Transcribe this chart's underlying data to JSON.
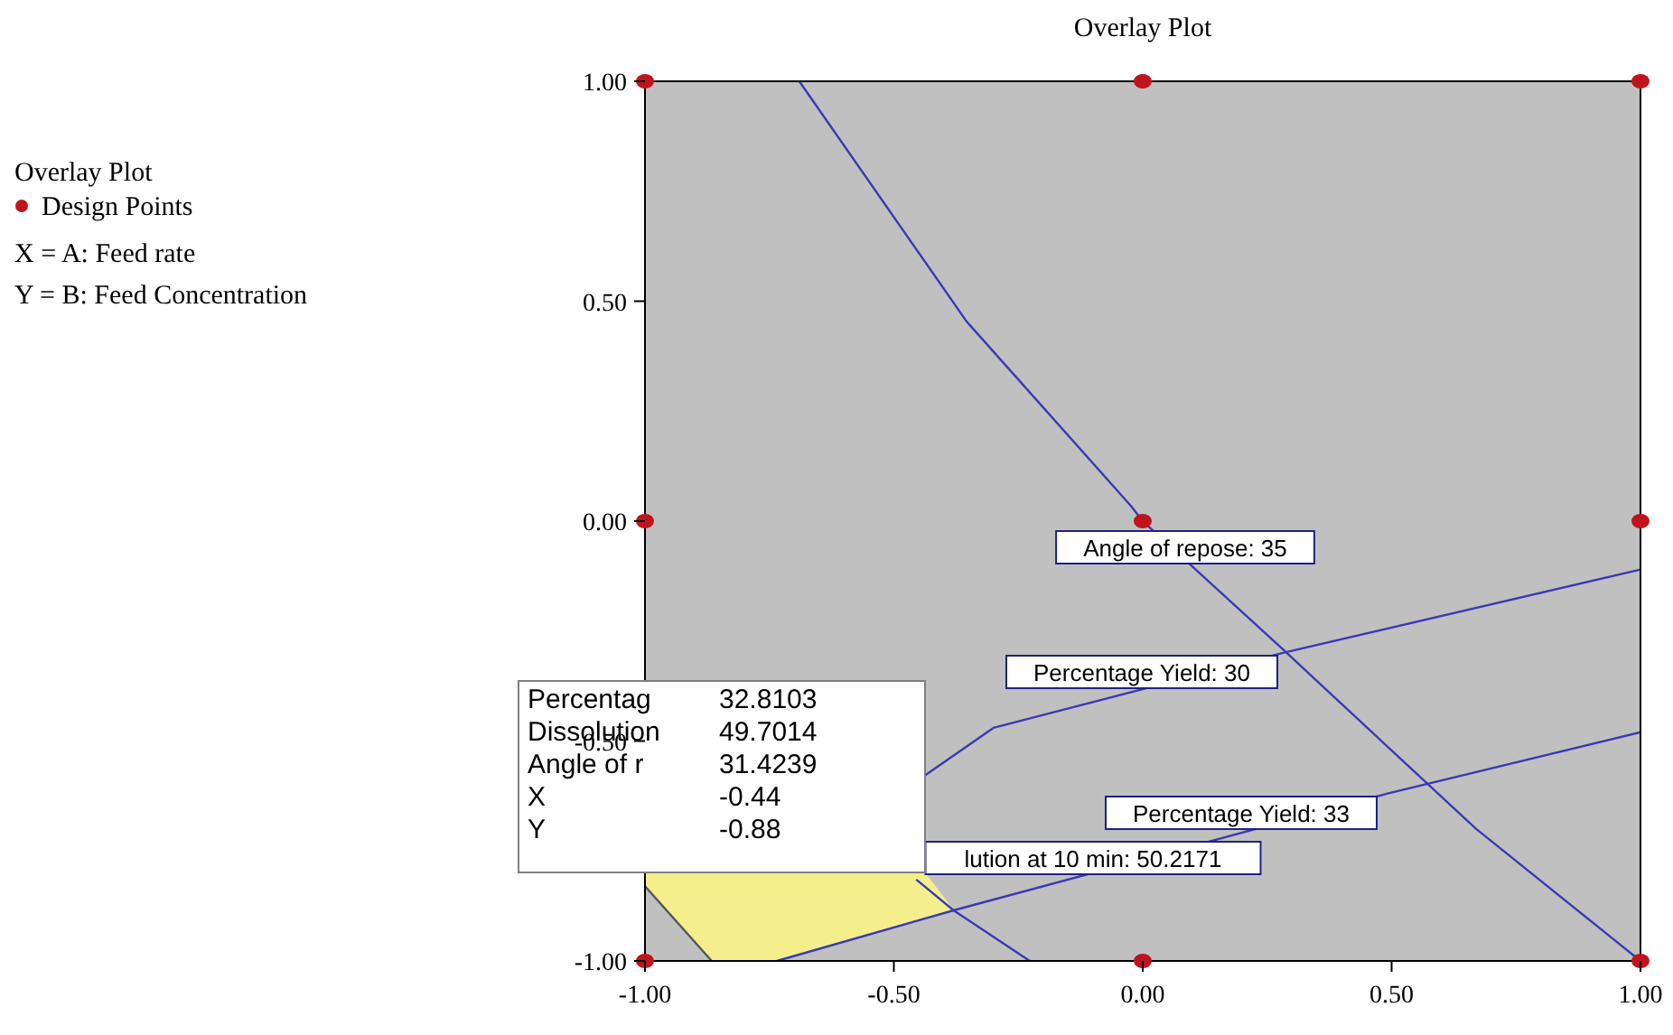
{
  "chart_data": {
    "type": "line",
    "title": "Overlay Plot",
    "legend_title": "Overlay Plot",
    "legend": "left",
    "grid": false,
    "xlim": [
      -1,
      1
    ],
    "ylim": [
      -1,
      1
    ],
    "xticks": [
      {
        "value": -1,
        "label": "-1.00"
      },
      {
        "value": -0.5,
        "label": "-0.50"
      },
      {
        "value": 0,
        "label": "0.00"
      },
      {
        "value": 0.5,
        "label": "0.50"
      },
      {
        "value": 1,
        "label": "1.00"
      }
    ],
    "yticks": [
      {
        "value": -1,
        "label": "-1.00"
      },
      {
        "value": -0.5,
        "label": "-0.50"
      },
      {
        "value": 0,
        "label": "0.00"
      },
      {
        "value": 0.5,
        "label": "0.50"
      },
      {
        "value": 1,
        "label": "1.00"
      }
    ],
    "series": [
      {
        "color": "#3a3ab4",
        "marker": "none",
        "x": [
          -0.69,
          -0.354,
          -0.024,
          0,
          0.28,
          0.67,
          1
        ],
        "values": [
          1,
          0.454,
          0.035,
          0,
          -0.29,
          -0.7,
          -1
        ]
      },
      {
        "color": "#3a3ab4",
        "marker": "none",
        "x": [
          -0.44,
          -0.3,
          0.28,
          1
        ],
        "values": [
          -0.58,
          -0.47,
          -0.3,
          -0.11
        ]
      },
      {
        "color": "#3a3ab4",
        "marker": "none",
        "x": [
          -0.735,
          -0.38,
          0.49,
          1
        ],
        "values": [
          -1,
          -0.885,
          -0.62,
          -0.48
        ]
      },
      {
        "color": "#3a3ab4",
        "marker": "none",
        "x": [
          -0.455,
          -0.38,
          -0.227
        ],
        "values": [
          -0.815,
          -0.885,
          -1
        ]
      },
      {
        "color": "#555555",
        "marker": "none",
        "x": [
          -1,
          -0.866
        ],
        "values": [
          -0.83,
          -1
        ]
      },
      {
        "type": "scatter",
        "name": "Design Points",
        "color": "#c0141c",
        "marker": "circle",
        "x": [
          -1,
          0,
          1,
          -1,
          0,
          1,
          -1,
          0,
          1
        ],
        "values": [
          1,
          1,
          1,
          0,
          0,
          0,
          -1,
          -1,
          -1
        ]
      }
    ],
    "annotations": [
      "X = A: Feed rate",
      "Y = B: Feed Concentration",
      "Angle of repose: 35",
      "Percentage Yield: 30",
      "Percentage Yield: 33",
      "lution at 10 min: 50.2171",
      "Percentag\t32.8103",
      "Dissolution\t49.7014",
      "Angle of r\t31.4239",
      "X\t-0.44",
      "Y\t-0.88"
    ]
  }
}
